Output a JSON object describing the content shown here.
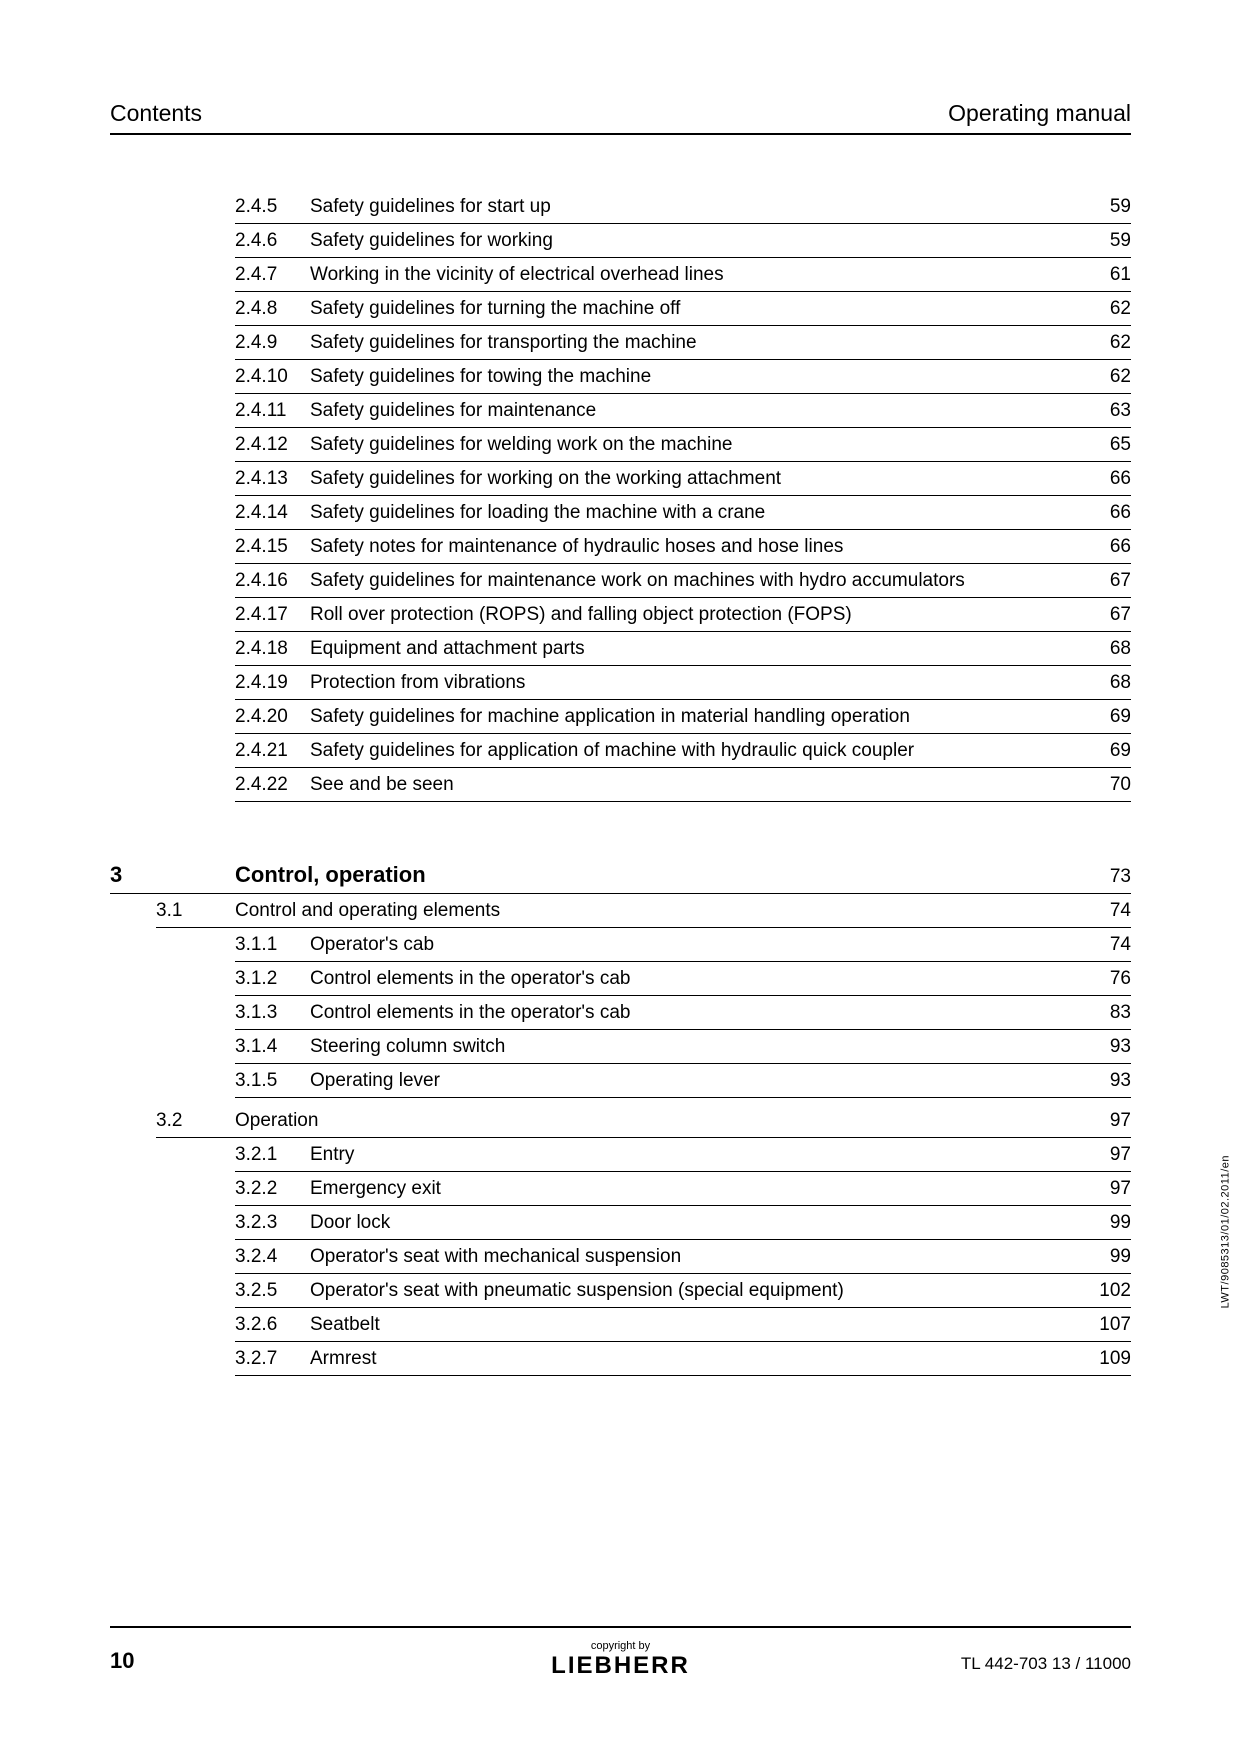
{
  "header": {
    "left": "Contents",
    "right": "Operating manual"
  },
  "toc_items_a": [
    {
      "num": "2.4.5",
      "title": "Safety guidelines for start up",
      "page": "59"
    },
    {
      "num": "2.4.6",
      "title": "Safety guidelines for working",
      "page": "59"
    },
    {
      "num": "2.4.7",
      "title": "Working in the vicinity of electrical overhead lines",
      "page": "61"
    },
    {
      "num": "2.4.8",
      "title": "Safety guidelines for turning the machine off",
      "page": "62"
    },
    {
      "num": "2.4.9",
      "title": "Safety guidelines for transporting the machine",
      "page": "62"
    },
    {
      "num": "2.4.10",
      "title": "Safety guidelines for towing the machine",
      "page": "62"
    },
    {
      "num": "2.4.11",
      "title": "Safety guidelines for maintenance",
      "page": "63"
    },
    {
      "num": "2.4.12",
      "title": "Safety guidelines for welding work on the machine",
      "page": "65"
    },
    {
      "num": "2.4.13",
      "title": "Safety guidelines for working on the working attachment",
      "page": "66"
    },
    {
      "num": "2.4.14",
      "title": "Safety guidelines for loading the machine with a crane",
      "page": "66"
    },
    {
      "num": "2.4.15",
      "title": "Safety notes for maintenance of hydraulic hoses and hose lines",
      "page": "66"
    },
    {
      "num": "2.4.16",
      "title": "Safety guidelines for maintenance work on machines with hydro accumulators",
      "page": "67"
    },
    {
      "num": "2.4.17",
      "title": "Roll over protection (ROPS) and falling object protection (FOPS)",
      "page": "67"
    },
    {
      "num": "2.4.18",
      "title": "Equipment and attachment parts",
      "page": "68"
    },
    {
      "num": "2.4.19",
      "title": "Protection from vibrations",
      "page": "68"
    },
    {
      "num": "2.4.20",
      "title": "Safety guidelines for machine application in material handling operation",
      "page": "69"
    },
    {
      "num": "2.4.21",
      "title": "Safety guidelines for application of machine with hydraulic quick coupler",
      "page": "69"
    },
    {
      "num": "2.4.22",
      "title": "See and be seen",
      "page": "70"
    }
  ],
  "chapter": {
    "num": "3",
    "title": "Control, operation",
    "page": "73"
  },
  "section_31": {
    "num": "3.1",
    "title": "Control and operating elements",
    "page": "74"
  },
  "toc_items_31": [
    {
      "num": "3.1.1",
      "title": "Operator's cab",
      "page": "74"
    },
    {
      "num": "3.1.2",
      "title": "Control elements in the operator's cab",
      "page": "76"
    },
    {
      "num": "3.1.3",
      "title": "Control elements in the operator's cab",
      "page": "83"
    },
    {
      "num": "3.1.4",
      "title": "Steering column switch",
      "page": "93"
    },
    {
      "num": "3.1.5",
      "title": "Operating lever",
      "page": "93"
    }
  ],
  "section_32": {
    "num": "3.2",
    "title": "Operation",
    "page": "97"
  },
  "toc_items_32": [
    {
      "num": "3.2.1",
      "title": "Entry",
      "page": "97"
    },
    {
      "num": "3.2.2",
      "title": "Emergency exit",
      "page": "97"
    },
    {
      "num": "3.2.3",
      "title": "Door lock",
      "page": "99"
    },
    {
      "num": "3.2.4",
      "title": "Operator's seat with mechanical suspension",
      "page": "99"
    },
    {
      "num": "3.2.5",
      "title": "Operator's seat with pneumatic suspension (special equipment)",
      "page": "102"
    },
    {
      "num": "3.2.6",
      "title": "Seatbelt",
      "page": "107"
    },
    {
      "num": "3.2.7",
      "title": "Armrest",
      "page": "109"
    }
  ],
  "vertical_text": "LWT/9085313/01/02.2011/en",
  "footer": {
    "page_num": "10",
    "copyright": "copyright by",
    "brand": "LIEBHERR",
    "doc_id": "TL 442-703 13 / 11000"
  }
}
